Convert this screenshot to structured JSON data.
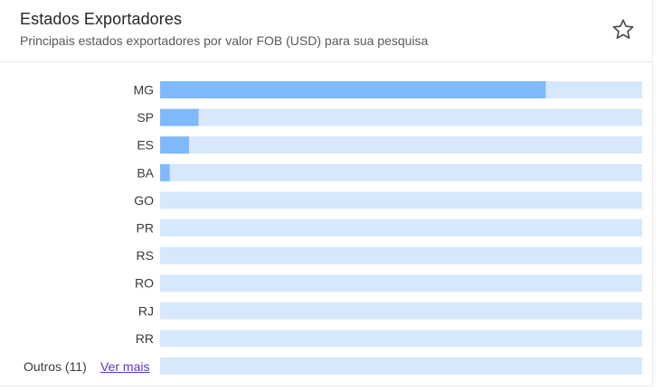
{
  "header": {
    "title": "Estados Exportadores",
    "subtitle": "Principais estados exportadores por valor FOB (USD) para sua pesquisa",
    "favorite_icon": "star-outline-icon"
  },
  "footer": {
    "others_label": "Outros (11)",
    "see_more_link": "Ver mais"
  },
  "colors": {
    "bar": "#80b9fb",
    "track": "#d7e8fd"
  },
  "chart_data": {
    "type": "bar",
    "orientation": "horizontal",
    "categories": [
      "MG",
      "SP",
      "ES",
      "BA",
      "GO",
      "PR",
      "RS",
      "RO",
      "RJ",
      "RR"
    ],
    "values": [
      80,
      8,
      6,
      2,
      0,
      0,
      0,
      0,
      0,
      0
    ],
    "others_bar_value": 0,
    "xlim": [
      0,
      100
    ],
    "unit": "share of max (%)",
    "grid": false,
    "legend": "none"
  }
}
